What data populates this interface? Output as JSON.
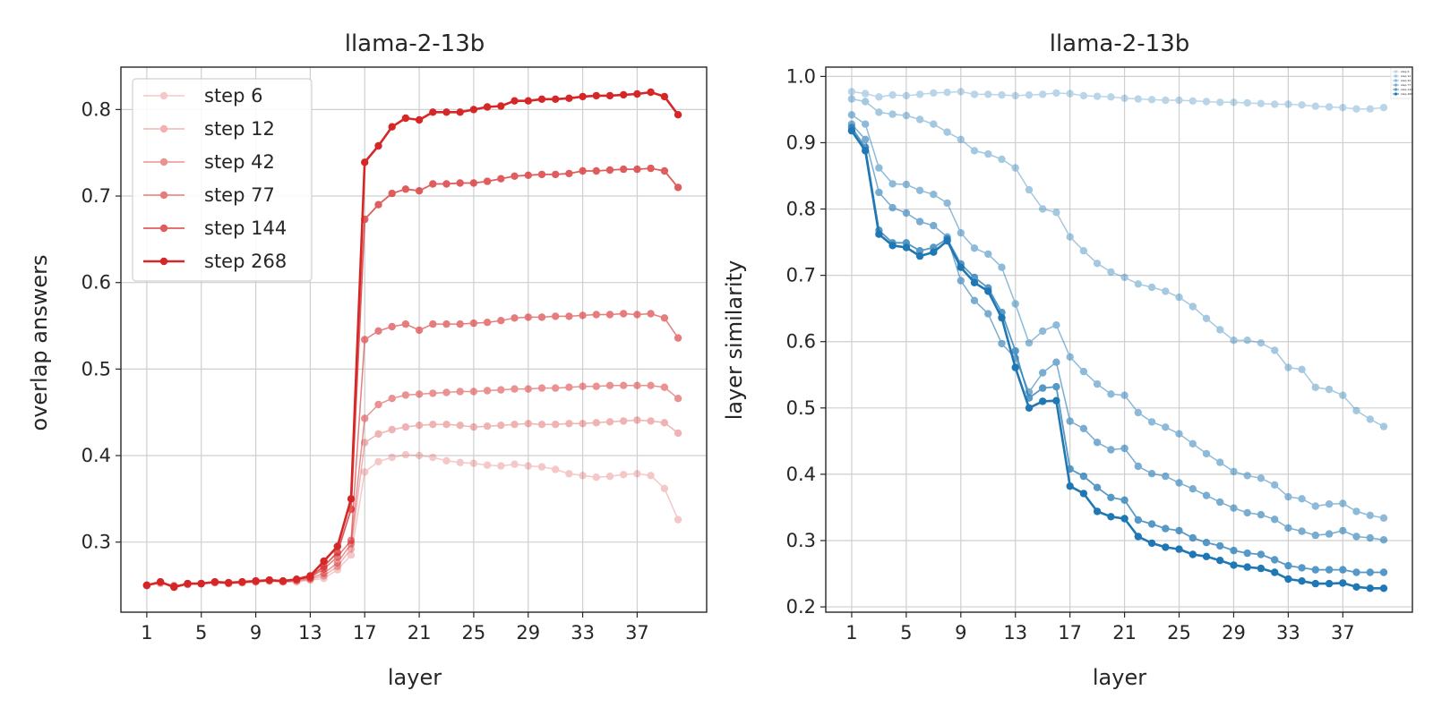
{
  "chart_data": [
    {
      "type": "line",
      "title": "llama-2-13b",
      "xlabel": "layer",
      "ylabel": "overlap answers",
      "xticks": [
        1,
        5,
        9,
        13,
        17,
        21,
        25,
        29,
        33,
        37
      ],
      "yticks": [
        0.3,
        0.4,
        0.5,
        0.6,
        0.7,
        0.8
      ],
      "xlim": [
        -0.9,
        42.1
      ],
      "ylim": [
        0.219,
        0.849
      ],
      "grid": true,
      "legend": "top-left",
      "color": "#d62728",
      "x": [
        1,
        2,
        3,
        4,
        5,
        6,
        7,
        8,
        9,
        10,
        11,
        12,
        13,
        14,
        15,
        16,
        17,
        18,
        19,
        20,
        21,
        22,
        23,
        24,
        25,
        26,
        27,
        28,
        29,
        30,
        31,
        32,
        33,
        34,
        35,
        36,
        37,
        38,
        39,
        40
      ],
      "series": [
        {
          "name": "step 6",
          "alpha": 0.25,
          "width": 1.5,
          "values": [
            0.25,
            0.252,
            0.25,
            0.251,
            0.252,
            0.253,
            0.252,
            0.253,
            0.254,
            0.255,
            0.254,
            0.254,
            0.256,
            0.258,
            0.268,
            0.285,
            0.381,
            0.393,
            0.398,
            0.401,
            0.4,
            0.398,
            0.394,
            0.392,
            0.391,
            0.389,
            0.388,
            0.39,
            0.388,
            0.387,
            0.384,
            0.379,
            0.377,
            0.375,
            0.376,
            0.378,
            0.379,
            0.377,
            0.362,
            0.326
          ]
        },
        {
          "name": "step 12",
          "alpha": 0.35,
          "width": 1.5,
          "values": [
            0.25,
            0.253,
            0.249,
            0.251,
            0.252,
            0.253,
            0.252,
            0.253,
            0.254,
            0.255,
            0.254,
            0.255,
            0.257,
            0.261,
            0.272,
            0.292,
            0.415,
            0.425,
            0.43,
            0.433,
            0.435,
            0.436,
            0.436,
            0.435,
            0.433,
            0.434,
            0.435,
            0.436,
            0.437,
            0.436,
            0.436,
            0.437,
            0.437,
            0.438,
            0.439,
            0.44,
            0.441,
            0.44,
            0.438,
            0.426
          ]
        },
        {
          "name": "step 42",
          "alpha": 0.5,
          "width": 1.5,
          "values": [
            0.25,
            0.254,
            0.249,
            0.252,
            0.252,
            0.254,
            0.253,
            0.254,
            0.255,
            0.256,
            0.255,
            0.256,
            0.258,
            0.264,
            0.276,
            0.298,
            0.443,
            0.459,
            0.466,
            0.47,
            0.471,
            0.472,
            0.473,
            0.474,
            0.474,
            0.475,
            0.476,
            0.477,
            0.477,
            0.478,
            0.478,
            0.479,
            0.48,
            0.48,
            0.481,
            0.481,
            0.481,
            0.481,
            0.479,
            0.466
          ]
        },
        {
          "name": "step 77",
          "alpha": 0.6,
          "width": 1.5,
          "values": [
            0.25,
            0.254,
            0.249,
            0.252,
            0.252,
            0.254,
            0.253,
            0.254,
            0.255,
            0.256,
            0.255,
            0.257,
            0.259,
            0.269,
            0.283,
            0.302,
            0.534,
            0.544,
            0.549,
            0.552,
            0.545,
            0.552,
            0.552,
            0.552,
            0.553,
            0.554,
            0.556,
            0.559,
            0.56,
            0.56,
            0.561,
            0.561,
            0.562,
            0.563,
            0.563,
            0.564,
            0.563,
            0.564,
            0.559,
            0.536
          ]
        },
        {
          "name": "step 144",
          "alpha": 0.75,
          "width": 1.8,
          "values": [
            0.25,
            0.254,
            0.248,
            0.252,
            0.252,
            0.254,
            0.253,
            0.254,
            0.255,
            0.256,
            0.255,
            0.257,
            0.26,
            0.272,
            0.288,
            0.338,
            0.673,
            0.69,
            0.703,
            0.708,
            0.706,
            0.714,
            0.714,
            0.715,
            0.715,
            0.717,
            0.72,
            0.723,
            0.724,
            0.725,
            0.725,
            0.726,
            0.729,
            0.729,
            0.73,
            0.731,
            0.731,
            0.732,
            0.729,
            0.71
          ]
        },
        {
          "name": "step 268",
          "alpha": 1.0,
          "width": 2.6,
          "values": [
            0.25,
            0.254,
            0.248,
            0.252,
            0.252,
            0.254,
            0.253,
            0.254,
            0.255,
            0.256,
            0.255,
            0.257,
            0.261,
            0.278,
            0.295,
            0.35,
            0.739,
            0.758,
            0.78,
            0.79,
            0.788,
            0.797,
            0.797,
            0.797,
            0.8,
            0.803,
            0.804,
            0.81,
            0.81,
            0.812,
            0.812,
            0.813,
            0.815,
            0.816,
            0.816,
            0.817,
            0.818,
            0.82,
            0.815,
            0.794
          ]
        }
      ]
    },
    {
      "type": "line",
      "title": "llama-2-13b",
      "xlabel": "layer",
      "ylabel": "layer similarity",
      "xticks": [
        1,
        5,
        9,
        13,
        17,
        21,
        25,
        29,
        33,
        37
      ],
      "yticks": [
        0.2,
        0.3,
        0.4,
        0.5,
        0.6,
        0.7,
        0.8,
        0.9,
        1.0
      ],
      "xlim": [
        -0.9,
        42.1
      ],
      "ylim": [
        0.192,
        1.014
      ],
      "grid": true,
      "legend": "top-right",
      "color": "#1f77b4",
      "x": [
        1,
        2,
        3,
        4,
        5,
        6,
        7,
        8,
        9,
        10,
        11,
        12,
        13,
        14,
        15,
        16,
        17,
        18,
        19,
        20,
        21,
        22,
        23,
        24,
        25,
        26,
        27,
        28,
        29,
        30,
        31,
        32,
        33,
        34,
        35,
        36,
        37,
        38,
        39,
        40
      ],
      "series": [
        {
          "name": "step 6",
          "alpha": 0.3,
          "width": 1.5,
          "values": [
            0.977,
            0.974,
            0.969,
            0.972,
            0.971,
            0.973,
            0.975,
            0.976,
            0.977,
            0.973,
            0.973,
            0.972,
            0.971,
            0.972,
            0.973,
            0.975,
            0.974,
            0.971,
            0.97,
            0.969,
            0.967,
            0.966,
            0.965,
            0.964,
            0.964,
            0.963,
            0.962,
            0.961,
            0.961,
            0.96,
            0.959,
            0.958,
            0.958,
            0.957,
            0.955,
            0.954,
            0.953,
            0.951,
            0.951,
            0.953
          ]
        },
        {
          "name": "step 12",
          "alpha": 0.4,
          "width": 1.5,
          "values": [
            0.966,
            0.962,
            0.946,
            0.943,
            0.941,
            0.935,
            0.928,
            0.916,
            0.905,
            0.888,
            0.883,
            0.875,
            0.862,
            0.829,
            0.8,
            0.795,
            0.758,
            0.737,
            0.718,
            0.705,
            0.697,
            0.687,
            0.682,
            0.676,
            0.667,
            0.653,
            0.635,
            0.618,
            0.602,
            0.602,
            0.598,
            0.587,
            0.561,
            0.558,
            0.531,
            0.528,
            0.519,
            0.496,
            0.483,
            0.472
          ]
        },
        {
          "name": "step 42",
          "alpha": 0.5,
          "width": 1.5,
          "values": [
            0.942,
            0.928,
            0.862,
            0.838,
            0.837,
            0.828,
            0.822,
            0.809,
            0.764,
            0.741,
            0.732,
            0.712,
            0.657,
            0.598,
            0.616,
            0.625,
            0.577,
            0.555,
            0.536,
            0.521,
            0.519,
            0.493,
            0.479,
            0.471,
            0.461,
            0.446,
            0.431,
            0.418,
            0.404,
            0.398,
            0.394,
            0.384,
            0.366,
            0.363,
            0.352,
            0.355,
            0.356,
            0.344,
            0.338,
            0.334
          ]
        },
        {
          "name": "step 77",
          "alpha": 0.6,
          "width": 1.5,
          "values": [
            0.928,
            0.905,
            0.825,
            0.802,
            0.794,
            0.781,
            0.775,
            0.758,
            0.692,
            0.662,
            0.642,
            0.597,
            0.575,
            0.524,
            0.553,
            0.569,
            0.48,
            0.469,
            0.448,
            0.437,
            0.439,
            0.412,
            0.401,
            0.397,
            0.387,
            0.378,
            0.368,
            0.358,
            0.349,
            0.342,
            0.339,
            0.332,
            0.319,
            0.314,
            0.308,
            0.31,
            0.315,
            0.306,
            0.304,
            0.301
          ]
        },
        {
          "name": "step 144",
          "alpha": 0.75,
          "width": 1.8,
          "values": [
            0.923,
            0.893,
            0.768,
            0.749,
            0.749,
            0.737,
            0.742,
            0.755,
            0.717,
            0.697,
            0.681,
            0.644,
            0.586,
            0.515,
            0.53,
            0.532,
            0.408,
            0.397,
            0.38,
            0.365,
            0.361,
            0.331,
            0.325,
            0.318,
            0.315,
            0.304,
            0.297,
            0.292,
            0.285,
            0.281,
            0.279,
            0.271,
            0.262,
            0.259,
            0.256,
            0.256,
            0.256,
            0.252,
            0.252,
            0.252
          ]
        },
        {
          "name": "step 268",
          "alpha": 1.0,
          "width": 2.6,
          "values": [
            0.918,
            0.888,
            0.762,
            0.745,
            0.742,
            0.729,
            0.735,
            0.752,
            0.712,
            0.689,
            0.676,
            0.636,
            0.561,
            0.5,
            0.51,
            0.511,
            0.382,
            0.371,
            0.344,
            0.336,
            0.333,
            0.306,
            0.296,
            0.29,
            0.287,
            0.279,
            0.276,
            0.27,
            0.263,
            0.26,
            0.258,
            0.252,
            0.242,
            0.239,
            0.235,
            0.235,
            0.236,
            0.23,
            0.228,
            0.228
          ]
        }
      ]
    }
  ]
}
